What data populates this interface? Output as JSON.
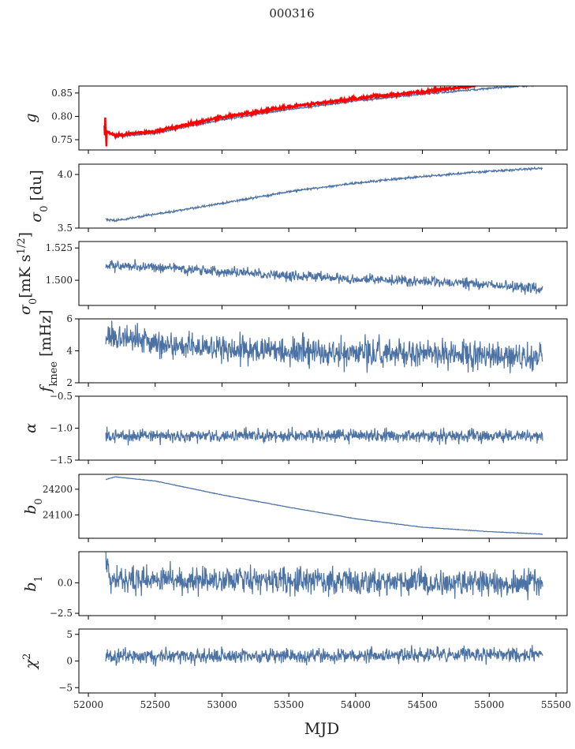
{
  "chart_data": {
    "type": "line",
    "title": "000316",
    "xlabel": "MJD",
    "xlim": [
      51929,
      55583
    ],
    "xticks": [
      52000,
      52500,
      53000,
      53500,
      54000,
      54500,
      55000,
      55500
    ],
    "series_color": "#4c72a4",
    "panels": [
      {
        "ylabel": {
          "main": "g",
          "sub": "",
          "sup": "",
          "unit": ""
        },
        "ylim": [
          0.728,
          0.865
        ],
        "yticks": [
          0.75,
          0.8,
          0.85
        ],
        "ytick_labels": [
          "0.75",
          "0.80",
          "0.85"
        ],
        "series": [
          {
            "name": "g",
            "color": "#4c72a4",
            "noise": 0.001,
            "points": [
              [
                52130,
                0.77
              ],
              [
                52200,
                0.757
              ],
              [
                52500,
                0.764
              ],
              [
                53000,
                0.793
              ],
              [
                53500,
                0.815
              ],
              [
                54000,
                0.833
              ],
              [
                54500,
                0.848
              ],
              [
                55000,
                0.86
              ],
              [
                55400,
                0.868
              ]
            ]
          },
          {
            "name": "g (red)",
            "color": "#ff0000",
            "noise": 0.0015,
            "points": [
              [
                52120,
                0.77
              ],
              [
                52200,
                0.759
              ],
              [
                52500,
                0.768
              ],
              [
                53000,
                0.798
              ],
              [
                53500,
                0.82
              ],
              [
                54000,
                0.838
              ],
              [
                54500,
                0.853
              ],
              [
                54900,
                0.866
              ]
            ]
          }
        ]
      },
      {
        "ylabel": {
          "main": "σ",
          "sub": "0",
          "sup": "",
          "unit": " [du]"
        },
        "ylim": [
          3.5,
          4.096
        ],
        "yticks": [
          3.5,
          4.0
        ],
        "ytick_labels": [
          "3.5",
          "4.0"
        ],
        "series": [
          {
            "name": "sigma0_du",
            "color": "#4c72a4",
            "noise": 0.005,
            "points": [
              [
                52130,
                3.58
              ],
              [
                52200,
                3.57
              ],
              [
                52500,
                3.63
              ],
              [
                53000,
                3.73
              ],
              [
                53500,
                3.84
              ],
              [
                54000,
                3.92
              ],
              [
                54500,
                3.98
              ],
              [
                55000,
                4.03
              ],
              [
                55400,
                4.06
              ]
            ]
          }
        ]
      },
      {
        "ylabel": {
          "main": "σ",
          "sub": "0",
          "sup": "1/2",
          "unit": "[mK s"
        },
        "ylim": [
          1.4805,
          1.53
        ],
        "yticks": [
          1.5,
          1.525
        ],
        "ytick_labels": [
          "1.500",
          "1.525"
        ],
        "series": [
          {
            "name": "sigma0_mK",
            "color": "#4c72a4",
            "noise": 0.002,
            "points": [
              [
                52130,
                1.511
              ],
              [
                52500,
                1.51
              ],
              [
                53000,
                1.507
              ],
              [
                53500,
                1.504
              ],
              [
                54000,
                1.501
              ],
              [
                54500,
                1.499
              ],
              [
                55000,
                1.497
              ],
              [
                55400,
                1.493
              ]
            ]
          }
        ]
      },
      {
        "ylabel": {
          "main": "f",
          "sub": "knee",
          "sup": "",
          "unit": " [mHz]"
        },
        "ylim": [
          2,
          6
        ],
        "yticks": [
          2,
          4,
          6
        ],
        "ytick_labels": [
          "2",
          "4",
          "6"
        ],
        "series": [
          {
            "name": "fknee",
            "color": "#4c72a4",
            "noise": 0.45,
            "points": [
              [
                52130,
                5.0
              ],
              [
                52500,
                4.4
              ],
              [
                53000,
                4.1
              ],
              [
                54000,
                3.9
              ],
              [
                55400,
                3.6
              ]
            ]
          }
        ]
      },
      {
        "ylabel": {
          "main": "α",
          "sub": "",
          "sup": "",
          "unit": ""
        },
        "ylim": [
          -1.5,
          -0.5
        ],
        "yticks": [
          -1.5,
          -1.0,
          -0.5
        ],
        "ytick_labels": [
          "−1.5",
          "−1.0",
          "−0.5"
        ],
        "series": [
          {
            "name": "alpha",
            "color": "#4c72a4",
            "noise": 0.05,
            "points": [
              [
                52130,
                -1.12
              ],
              [
                55400,
                -1.12
              ]
            ]
          }
        ]
      },
      {
        "ylabel": {
          "main": "b",
          "sub": "0",
          "sup": "",
          "unit": ""
        },
        "ylim": [
          24009,
          24258
        ],
        "yticks": [
          24100,
          24200
        ],
        "ytick_labels": [
          "24100",
          "24200"
        ],
        "series": [
          {
            "name": "b0",
            "color": "#4c72a4",
            "noise": 0.5,
            "points": [
              [
                52130,
                24238
              ],
              [
                52200,
                24248
              ],
              [
                52500,
                24232
              ],
              [
                53000,
                24178
              ],
              [
                53500,
                24130
              ],
              [
                54000,
                24085
              ],
              [
                54500,
                24052
              ],
              [
                55000,
                24035
              ],
              [
                55400,
                24025
              ]
            ]
          }
        ]
      },
      {
        "ylabel": {
          "main": "b",
          "sub": "1",
          "sup": "",
          "unit": ""
        },
        "ylim": [
          -2.69,
          2.56
        ],
        "yticks": [
          -2.5,
          0.0
        ],
        "ytick_labels": [
          "−2.5",
          "0.0"
        ],
        "series": [
          {
            "name": "b1",
            "color": "#4c72a4",
            "noise": 0.55,
            "points": [
              [
                52130,
                2.2
              ],
              [
                52160,
                0.3
              ],
              [
                55400,
                0.0
              ]
            ]
          }
        ]
      },
      {
        "ylabel": {
          "main": "χ",
          "sub": "",
          "sup": "2",
          "unit": ""
        },
        "ylim": [
          -6,
          6
        ],
        "yticks": [
          -5,
          0,
          5
        ],
        "ytick_labels": [
          "−5",
          "0",
          "5"
        ],
        "series": [
          {
            "name": "chi2",
            "color": "#4c72a4",
            "noise": 0.7,
            "points": [
              [
                52130,
                0.8
              ],
              [
                55400,
                1.2
              ]
            ]
          }
        ]
      }
    ]
  }
}
